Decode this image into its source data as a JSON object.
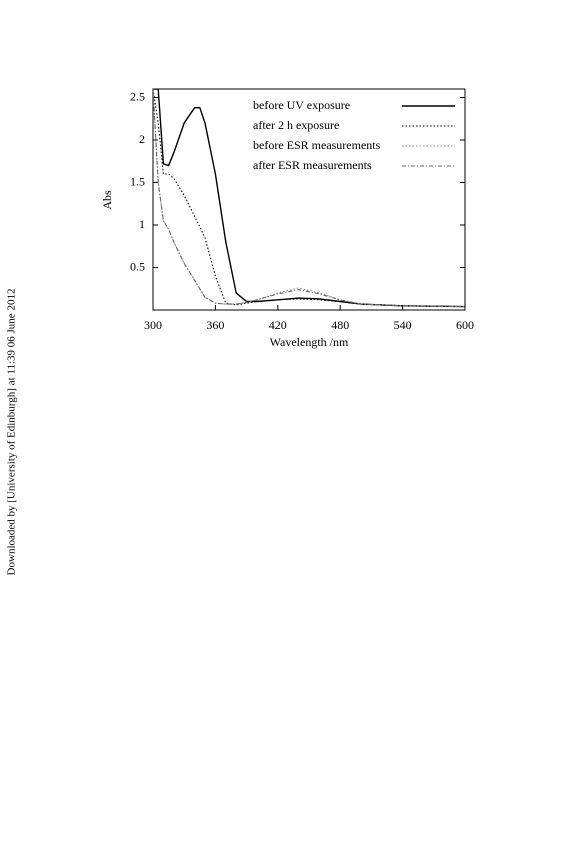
{
  "watermark": "Downloaded by [University of Edinburgh] at 11:39 06 June 2012",
  "chart_data": {
    "type": "line",
    "xlabel": "Wavelength /nm",
    "ylabel": "Abs",
    "x": [
      300,
      305,
      310,
      315,
      320,
      330,
      340,
      345,
      350,
      360,
      370,
      380,
      390,
      400,
      420,
      440,
      460,
      480,
      500,
      540,
      600
    ],
    "series": [
      {
        "name": "before UV exposure",
        "color": "#000000",
        "dash": "solid",
        "values": [
          2.6,
          2.6,
          1.72,
          1.7,
          1.85,
          2.2,
          2.38,
          2.38,
          2.2,
          1.6,
          0.8,
          0.2,
          0.1,
          0.1,
          0.12,
          0.14,
          0.13,
          0.1,
          0.07,
          0.05,
          0.04
        ]
      },
      {
        "name": "after 2 h  exposure",
        "color": "#000000",
        "dash": "dotted",
        "values": [
          2.6,
          2.2,
          1.6,
          1.6,
          1.55,
          1.35,
          1.1,
          0.98,
          0.85,
          0.4,
          0.08,
          0.06,
          0.08,
          0.1,
          0.12,
          0.13,
          0.12,
          0.1,
          0.07,
          0.05,
          0.04
        ]
      },
      {
        "name": "before ESR measurements",
        "color": "#888888",
        "dash": "dotted",
        "values": [
          2.6,
          1.5,
          1.05,
          0.95,
          0.8,
          0.55,
          0.35,
          0.25,
          0.15,
          0.08,
          0.07,
          0.07,
          0.09,
          0.12,
          0.2,
          0.26,
          0.2,
          0.12,
          0.07,
          0.05,
          0.04
        ]
      },
      {
        "name": "after ESR measurements",
        "color": "#666666",
        "dash": "dashdot",
        "values": [
          2.6,
          1.5,
          1.05,
          0.95,
          0.8,
          0.55,
          0.35,
          0.25,
          0.15,
          0.08,
          0.07,
          0.07,
          0.09,
          0.12,
          0.19,
          0.24,
          0.19,
          0.12,
          0.07,
          0.05,
          0.04
        ]
      }
    ],
    "xlim": [
      300,
      600
    ],
    "xticks": [
      300,
      360,
      420,
      480,
      540,
      600
    ],
    "ylim": [
      0,
      2.6
    ],
    "yticks": [
      0.5,
      1.0,
      1.5,
      2.0,
      2.5
    ],
    "legend": "upper right",
    "grid": false
  }
}
